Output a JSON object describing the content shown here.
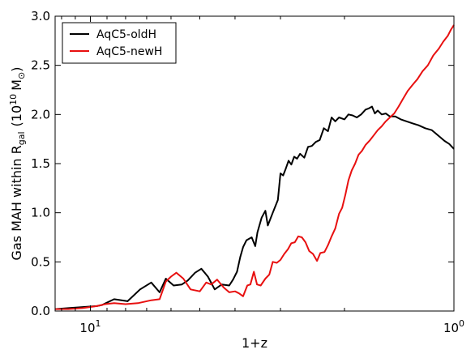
{
  "chart_data": {
    "type": "line",
    "xscale": "log-reversed",
    "xlabel": "1+z",
    "ylabel": "Gas MAH within R",
    "ylabel_sub": "gal",
    "ylabel_unit_open": "(10",
    "ylabel_unit_exp": "10",
    "ylabel_unit_mass": "M",
    "ylabel_unit_sun": "⊙",
    "ylabel_unit_close": ")",
    "xlim": [
      12.5,
      1.0
    ],
    "ylim": [
      0.0,
      3.0
    ],
    "x_ticks": [
      {
        "value": 10,
        "base": "10",
        "exp": "1"
      },
      {
        "value": 1,
        "base": "10",
        "exp": "0"
      }
    ],
    "y_ticks": [
      "0.0",
      "0.5",
      "1.0",
      "1.5",
      "2.0",
      "2.5",
      "3.0"
    ],
    "legend_position": "top-left",
    "grid": false,
    "series": [
      {
        "name": "AqC5-oldH",
        "color": "#000000",
        "points": [
          [
            12.5,
            0.02
          ],
          [
            11.5,
            0.03
          ],
          [
            10.5,
            0.04
          ],
          [
            9.6,
            0.05
          ],
          [
            9.3,
            0.06
          ],
          [
            8.6,
            0.12
          ],
          [
            7.9,
            0.1
          ],
          [
            7.3,
            0.22
          ],
          [
            6.8,
            0.29
          ],
          [
            6.45,
            0.19
          ],
          [
            6.2,
            0.33
          ],
          [
            5.9,
            0.26
          ],
          [
            5.6,
            0.27
          ],
          [
            5.4,
            0.31
          ],
          [
            5.15,
            0.39
          ],
          [
            4.95,
            0.43
          ],
          [
            4.75,
            0.35
          ],
          [
            4.55,
            0.22
          ],
          [
            4.35,
            0.27
          ],
          [
            4.15,
            0.26
          ],
          [
            4.05,
            0.32
          ],
          [
            3.95,
            0.4
          ],
          [
            3.87,
            0.55
          ],
          [
            3.8,
            0.65
          ],
          [
            3.72,
            0.72
          ],
          [
            3.6,
            0.75
          ],
          [
            3.52,
            0.66
          ],
          [
            3.47,
            0.8
          ],
          [
            3.38,
            0.95
          ],
          [
            3.3,
            1.02
          ],
          [
            3.25,
            0.87
          ],
          [
            3.15,
            1.0
          ],
          [
            3.05,
            1.13
          ],
          [
            3.0,
            1.4
          ],
          [
            2.95,
            1.38
          ],
          [
            2.9,
            1.45
          ],
          [
            2.85,
            1.53
          ],
          [
            2.8,
            1.49
          ],
          [
            2.75,
            1.57
          ],
          [
            2.7,
            1.55
          ],
          [
            2.65,
            1.6
          ],
          [
            2.58,
            1.56
          ],
          [
            2.52,
            1.67
          ],
          [
            2.46,
            1.68
          ],
          [
            2.4,
            1.72
          ],
          [
            2.34,
            1.74
          ],
          [
            2.28,
            1.86
          ],
          [
            2.22,
            1.83
          ],
          [
            2.17,
            1.97
          ],
          [
            2.12,
            1.93
          ],
          [
            2.07,
            1.97
          ],
          [
            2.0,
            1.95
          ],
          [
            1.95,
            2.0
          ],
          [
            1.9,
            1.99
          ],
          [
            1.85,
            1.97
          ],
          [
            1.8,
            2.0
          ],
          [
            1.75,
            2.05
          ],
          [
            1.72,
            2.06
          ],
          [
            1.68,
            2.08
          ],
          [
            1.65,
            2.01
          ],
          [
            1.62,
            2.04
          ],
          [
            1.58,
            2.0
          ],
          [
            1.54,
            2.01
          ],
          [
            1.5,
            1.98
          ],
          [
            1.45,
            1.98
          ],
          [
            1.4,
            1.95
          ],
          [
            1.35,
            1.93
          ],
          [
            1.3,
            1.91
          ],
          [
            1.25,
            1.89
          ],
          [
            1.2,
            1.86
          ],
          [
            1.15,
            1.84
          ],
          [
            1.1,
            1.78
          ],
          [
            1.06,
            1.73
          ],
          [
            1.03,
            1.7
          ],
          [
            1.0,
            1.65
          ]
        ]
      },
      {
        "name": "AqC5-newH",
        "color": "#e81010",
        "points": [
          [
            12.5,
            0.02
          ],
          [
            11.5,
            0.02
          ],
          [
            10.5,
            0.03
          ],
          [
            9.6,
            0.05
          ],
          [
            9.1,
            0.07
          ],
          [
            8.6,
            0.08
          ],
          [
            8.0,
            0.07
          ],
          [
            7.4,
            0.08
          ],
          [
            6.8,
            0.11
          ],
          [
            6.45,
            0.12
          ],
          [
            6.2,
            0.3
          ],
          [
            6.0,
            0.35
          ],
          [
            5.8,
            0.39
          ],
          [
            5.55,
            0.33
          ],
          [
            5.3,
            0.22
          ],
          [
            5.0,
            0.2
          ],
          [
            4.8,
            0.29
          ],
          [
            4.65,
            0.27
          ],
          [
            4.48,
            0.32
          ],
          [
            4.3,
            0.24
          ],
          [
            4.15,
            0.19
          ],
          [
            4.0,
            0.2
          ],
          [
            3.9,
            0.18
          ],
          [
            3.8,
            0.15
          ],
          [
            3.7,
            0.26
          ],
          [
            3.63,
            0.27
          ],
          [
            3.55,
            0.4
          ],
          [
            3.48,
            0.27
          ],
          [
            3.4,
            0.26
          ],
          [
            3.3,
            0.33
          ],
          [
            3.22,
            0.37
          ],
          [
            3.15,
            0.5
          ],
          [
            3.07,
            0.49
          ],
          [
            3.0,
            0.52
          ],
          [
            2.93,
            0.58
          ],
          [
            2.86,
            0.63
          ],
          [
            2.8,
            0.69
          ],
          [
            2.74,
            0.7
          ],
          [
            2.68,
            0.76
          ],
          [
            2.62,
            0.75
          ],
          [
            2.56,
            0.7
          ],
          [
            2.5,
            0.61
          ],
          [
            2.44,
            0.58
          ],
          [
            2.38,
            0.51
          ],
          [
            2.33,
            0.59
          ],
          [
            2.27,
            0.6
          ],
          [
            2.22,
            0.67
          ],
          [
            2.17,
            0.76
          ],
          [
            2.12,
            0.84
          ],
          [
            2.07,
            0.99
          ],
          [
            2.03,
            1.05
          ],
          [
            1.99,
            1.18
          ],
          [
            1.95,
            1.33
          ],
          [
            1.91,
            1.43
          ],
          [
            1.87,
            1.5
          ],
          [
            1.83,
            1.59
          ],
          [
            1.79,
            1.63
          ],
          [
            1.75,
            1.69
          ],
          [
            1.7,
            1.74
          ],
          [
            1.66,
            1.79
          ],
          [
            1.62,
            1.84
          ],
          [
            1.58,
            1.88
          ],
          [
            1.54,
            1.93
          ],
          [
            1.5,
            1.97
          ],
          [
            1.46,
            2.01
          ],
          [
            1.42,
            2.08
          ],
          [
            1.38,
            2.16
          ],
          [
            1.34,
            2.24
          ],
          [
            1.3,
            2.3
          ],
          [
            1.26,
            2.36
          ],
          [
            1.22,
            2.44
          ],
          [
            1.18,
            2.5
          ],
          [
            1.14,
            2.6
          ],
          [
            1.1,
            2.67
          ],
          [
            1.07,
            2.74
          ],
          [
            1.04,
            2.8
          ],
          [
            1.02,
            2.86
          ],
          [
            1.0,
            2.91
          ]
        ]
      }
    ]
  }
}
